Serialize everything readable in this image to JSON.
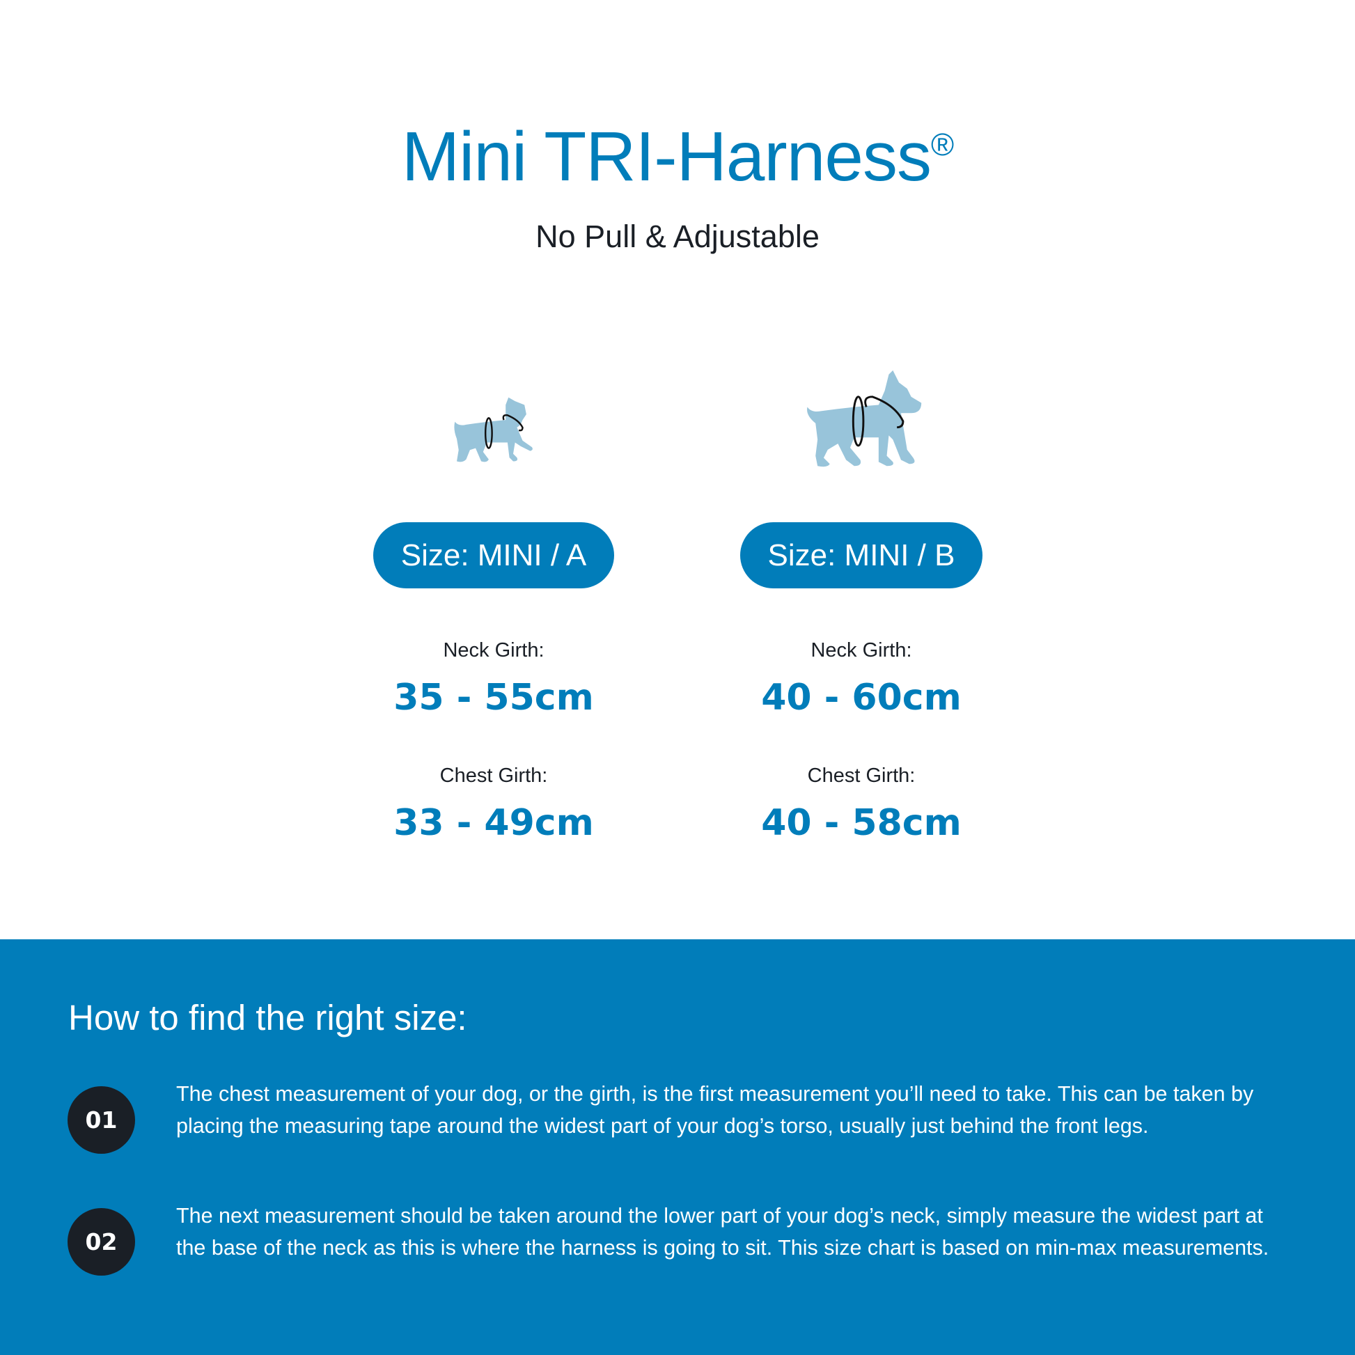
{
  "header": {
    "title": "Mini TRI-Harness",
    "registered_mark": "®",
    "subtitle": "No Pull & Adjustable"
  },
  "sizes": [
    {
      "label": "Size: MINI / A",
      "icon": "small-dog-icon",
      "neck_label": "Neck Girth:",
      "neck_value": "35 - 55cm",
      "chest_label": "Chest Girth:",
      "chest_value": "33 - 49cm"
    },
    {
      "label": "Size: MINI / B",
      "icon": "large-dog-icon",
      "neck_label": "Neck Girth:",
      "neck_value": "40 - 60cm",
      "chest_label": "Chest Girth:",
      "chest_value": "40 - 58cm"
    }
  ],
  "guide": {
    "heading": "How to find the right size:",
    "steps": [
      {
        "number": "01",
        "text": "The chest measurement of your dog, or the girth, is the first measurement you’ll need to take. This can be taken by placing the measuring tape around the widest part of your dog’s torso, usually just behind the front legs."
      },
      {
        "number": "02",
        "text": "The next measurement should be taken around the lower part of your dog’s neck, simply measure the widest part at the base of the neck as this is where the harness is going to sit. This size chart is based on min-max measurements."
      }
    ]
  },
  "colors": {
    "brand_blue": "#017dba",
    "dark": "#1a1f26",
    "dog_silhouette": "#98c4da"
  }
}
